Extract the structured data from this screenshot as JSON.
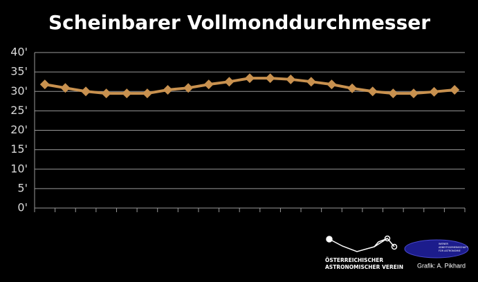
{
  "chart_data": {
    "type": "line",
    "title": "Scheinbarer Vollmonddurchmesser",
    "categories": [
      null,
      null,
      null,
      null,
      null,
      null,
      null,
      null,
      null,
      null,
      null,
      null,
      null,
      null,
      null,
      null,
      null,
      null,
      null,
      null,
      null
    ],
    "series": [
      {
        "name": null,
        "color": "#c8914f",
        "values": [
          31.8,
          30.9,
          30.0,
          29.5,
          29.5,
          29.5,
          30.4,
          30.9,
          31.8,
          32.5,
          33.4,
          33.4,
          33.1,
          32.5,
          31.8,
          30.8,
          30.0,
          29.5,
          29.5,
          29.9,
          30.4
        ]
      }
    ],
    "ylim": [
      0,
      40
    ],
    "yticks": [
      {
        "value": 0,
        "label": "0'"
      },
      {
        "value": 5,
        "label": "5'"
      },
      {
        "value": 10,
        "label": "10'"
      },
      {
        "value": 15,
        "label": "15'"
      },
      {
        "value": 20,
        "label": "20'"
      },
      {
        "value": 25,
        "label": "25'"
      },
      {
        "value": 30,
        "label": "30'"
      },
      {
        "value": 35,
        "label": "35'"
      },
      {
        "value": 40,
        "label": "40'"
      }
    ],
    "grid": true
  },
  "footer": {
    "logo_line1": "ÖSTERREICHISCHER",
    "logo_line2": "ASTRONOMISCHER VEREIN",
    "logo2_lines": [
      "WIENER",
      "ARBEITSGEMEINSCHAFT",
      "FÜR ASTRONOMIE"
    ],
    "credit": "Grafik: A. Pikhard"
  }
}
